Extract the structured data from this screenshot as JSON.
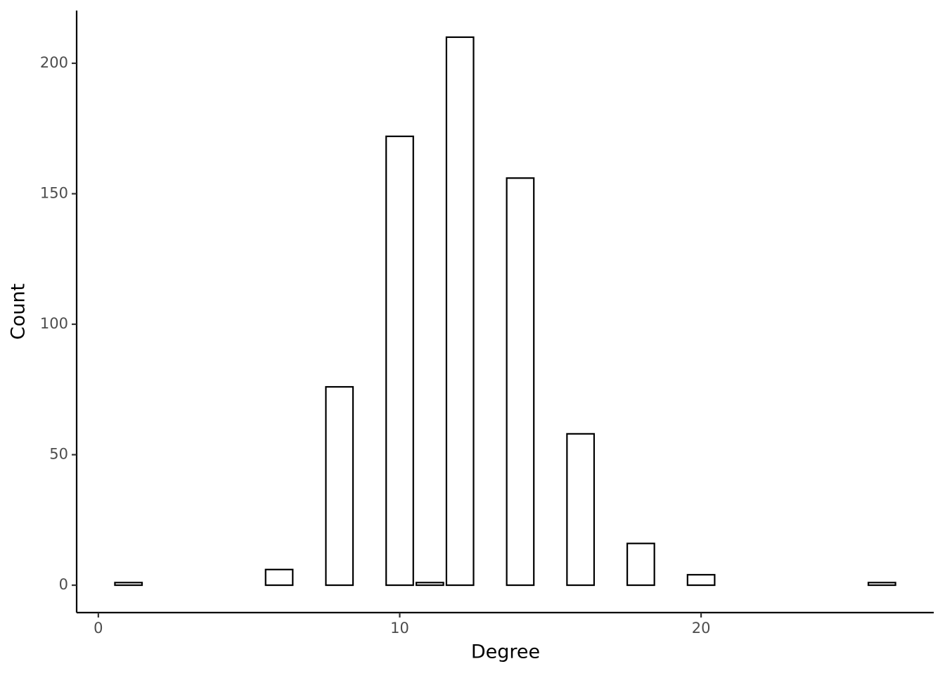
{
  "chart_data": {
    "type": "bar",
    "x_label": "Degree",
    "y_label": "Count",
    "x": [
      1,
      6,
      8,
      10,
      11,
      12,
      14,
      16,
      18,
      20,
      26
    ],
    "values": [
      1,
      6,
      76,
      172,
      1,
      210,
      156,
      58,
      16,
      4,
      1
    ],
    "color": "#ffffff",
    "edgecolor": "#000000",
    "xlim": [
      -0.72,
      27.72
    ],
    "xticks": [
      0,
      10,
      20
    ],
    "ylim": [
      -10.5,
      220.2
    ],
    "yticks": [
      0,
      50,
      100,
      150,
      200
    ],
    "grid": false
  }
}
